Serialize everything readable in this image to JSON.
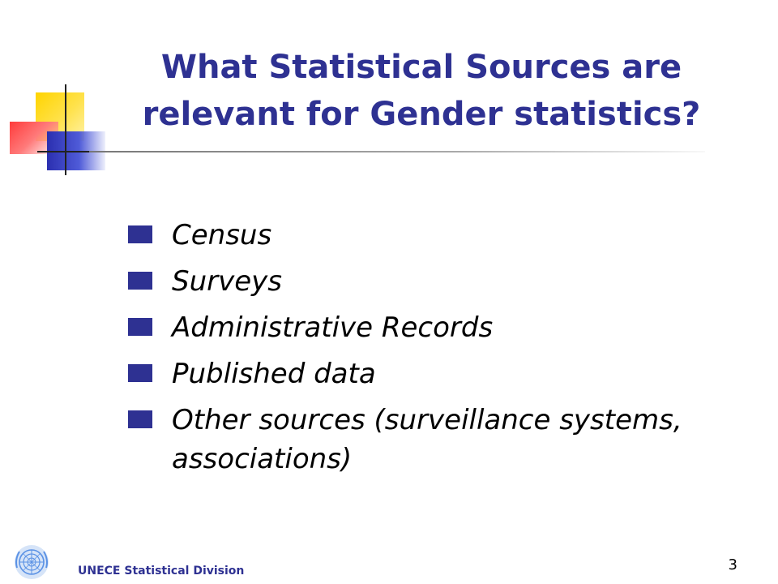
{
  "slide": {
    "title": "What Statistical Sources are relevant for Gender statistics?",
    "bullets": [
      {
        "text": "Census"
      },
      {
        "text": "Surveys"
      },
      {
        "text": "Administrative Records"
      },
      {
        "text": "Published data"
      },
      {
        "text": "Other sources (surveillance systems, associations)"
      }
    ],
    "footer": {
      "organization": "UNECE Statistical Division",
      "logo_icon": "un-emblem-icon"
    },
    "page_number": "3"
  },
  "colors": {
    "title": "#2e3192",
    "bullet_marker": "#2e3192",
    "footer_text": "#2e3192",
    "body_text": "#000000"
  }
}
